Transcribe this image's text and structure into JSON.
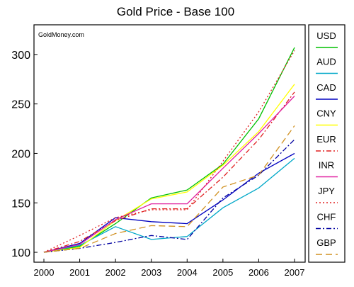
{
  "chart_data": {
    "type": "line",
    "title": "Gold Price - Base 100",
    "watermark": "GoldMoney.com",
    "xlabel": "",
    "ylabel": "",
    "x": [
      2000,
      2001,
      2002,
      2003,
      2004,
      2005,
      2006,
      2007
    ],
    "xticks": [
      "2000",
      "2001",
      "2002",
      "2003",
      "2004",
      "2005",
      "2006",
      "2007"
    ],
    "yticks": [
      "100",
      "150",
      "200",
      "250",
      "300"
    ],
    "ylim": [
      90,
      330
    ],
    "legend_position": "right",
    "series": [
      {
        "name": "USD",
        "color": "#00c000",
        "dash": "solid",
        "values": [
          100,
          106,
          129,
          155,
          163,
          189,
          235,
          307
        ]
      },
      {
        "name": "AUD",
        "color": "#00a8c8",
        "dash": "solid",
        "values": [
          100,
          107,
          126,
          113,
          116,
          145,
          165,
          195
        ]
      },
      {
        "name": "CAD",
        "color": "#0000c0",
        "dash": "solid",
        "values": [
          100,
          109,
          135,
          131,
          129,
          153,
          180,
          200
        ]
      },
      {
        "name": "CNY",
        "color": "#ffff00",
        "dash": "solid",
        "values": [
          100,
          105,
          132,
          154,
          161,
          188,
          222,
          270
        ]
      },
      {
        "name": "EUR",
        "color": "#e02020",
        "dash": "dashdot",
        "values": [
          100,
          111,
          132,
          144,
          144,
          176,
          214,
          262
        ]
      },
      {
        "name": "INR",
        "color": "#e020a0",
        "dash": "solid",
        "values": [
          100,
          108,
          133,
          149,
          149,
          185,
          220,
          258
        ]
      },
      {
        "name": "JPY",
        "color": "#e02020",
        "dash": "dotted",
        "values": [
          100,
          117,
          135,
          143,
          143,
          192,
          242,
          304
        ]
      },
      {
        "name": "CHF",
        "color": "#0000a0",
        "dash": "dashdot",
        "values": [
          100,
          104,
          110,
          117,
          113,
          155,
          178,
          214
        ]
      },
      {
        "name": "GBP",
        "color": "#d09020",
        "dash": "dashed",
        "values": [
          100,
          104,
          119,
          127,
          126,
          166,
          178,
          228
        ]
      }
    ]
  }
}
